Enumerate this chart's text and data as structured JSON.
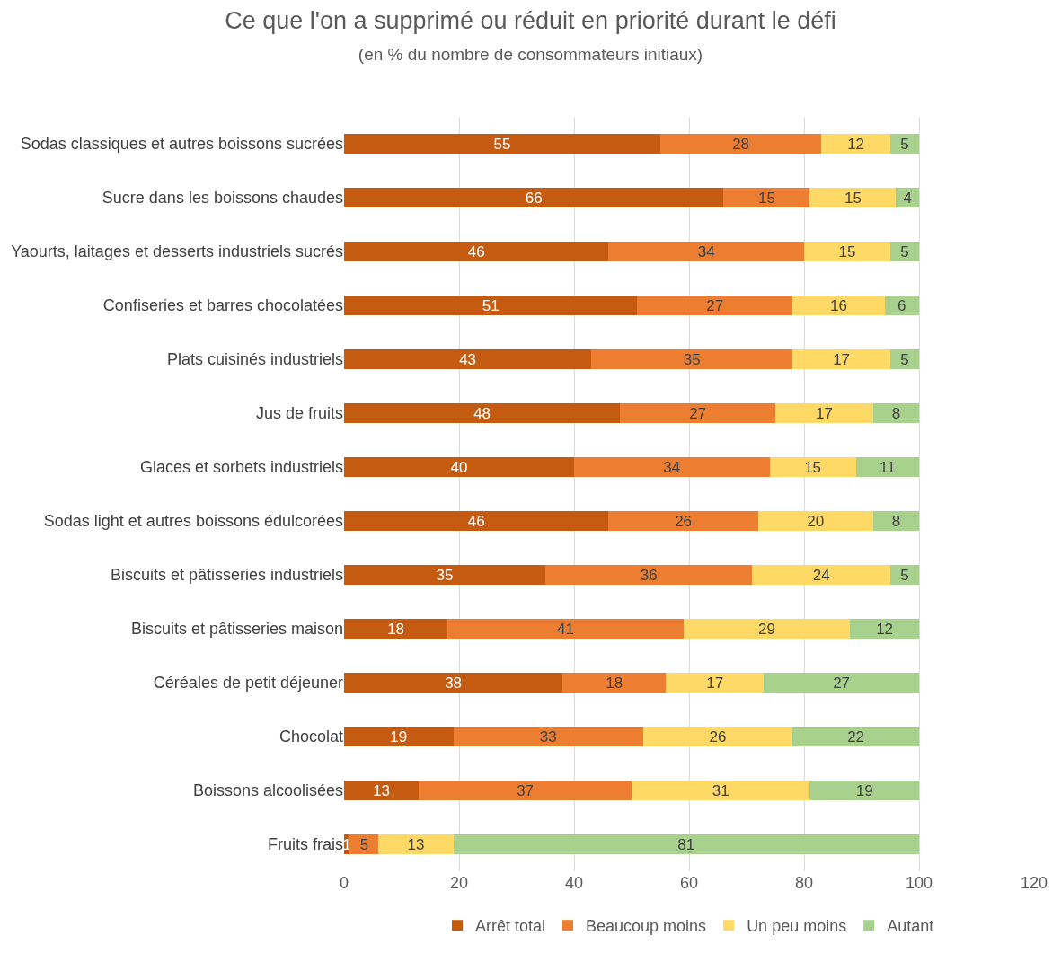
{
  "chart_data": {
    "type": "bar",
    "orientation": "horizontal",
    "stacked": true,
    "data_labels": true,
    "title": "Ce que l'on a supprimé ou réduit en priorité durant le défi",
    "subtitle": "(en % du nombre de consommateurs initiaux)",
    "categories": [
      "Sodas classiques et autres boissons sucrées",
      "Sucre dans les boissons chaudes",
      "Yaourts, laitages et desserts industriels sucrés",
      "Confiseries et barres chocolatées",
      "Plats cuisinés industriels",
      "Jus de fruits",
      "Glaces et sorbets industriels",
      "Sodas light et autres boissons édulcorées",
      "Biscuits et pâtisseries industriels",
      "Biscuits et pâtisseries maison",
      "Céréales de petit déjeuner",
      "Chocolat",
      "Boissons alcoolisées",
      "Fruits frais"
    ],
    "series": [
      {
        "name": "Arrêt total",
        "color": "#c55a11",
        "values": [
          55,
          66,
          46,
          51,
          43,
          48,
          40,
          46,
          35,
          18,
          38,
          19,
          13,
          1
        ]
      },
      {
        "name": "Beaucoup moins",
        "color": "#ed7d31",
        "values": [
          28,
          15,
          34,
          27,
          35,
          27,
          34,
          26,
          36,
          41,
          18,
          33,
          37,
          5
        ]
      },
      {
        "name": "Un peu moins",
        "color": "#ffd966",
        "values": [
          12,
          15,
          15,
          16,
          17,
          17,
          15,
          20,
          24,
          29,
          17,
          26,
          31,
          13
        ]
      },
      {
        "name": "Autant",
        "color": "#a9d18e",
        "values": [
          5,
          4,
          5,
          6,
          5,
          8,
          11,
          8,
          5,
          12,
          27,
          22,
          19,
          81
        ]
      }
    ],
    "xlim": [
      0,
      120
    ],
    "xticks": [
      0,
      20,
      40,
      60,
      80,
      100,
      120
    ],
    "grid": "x",
    "legend": "bottom"
  }
}
